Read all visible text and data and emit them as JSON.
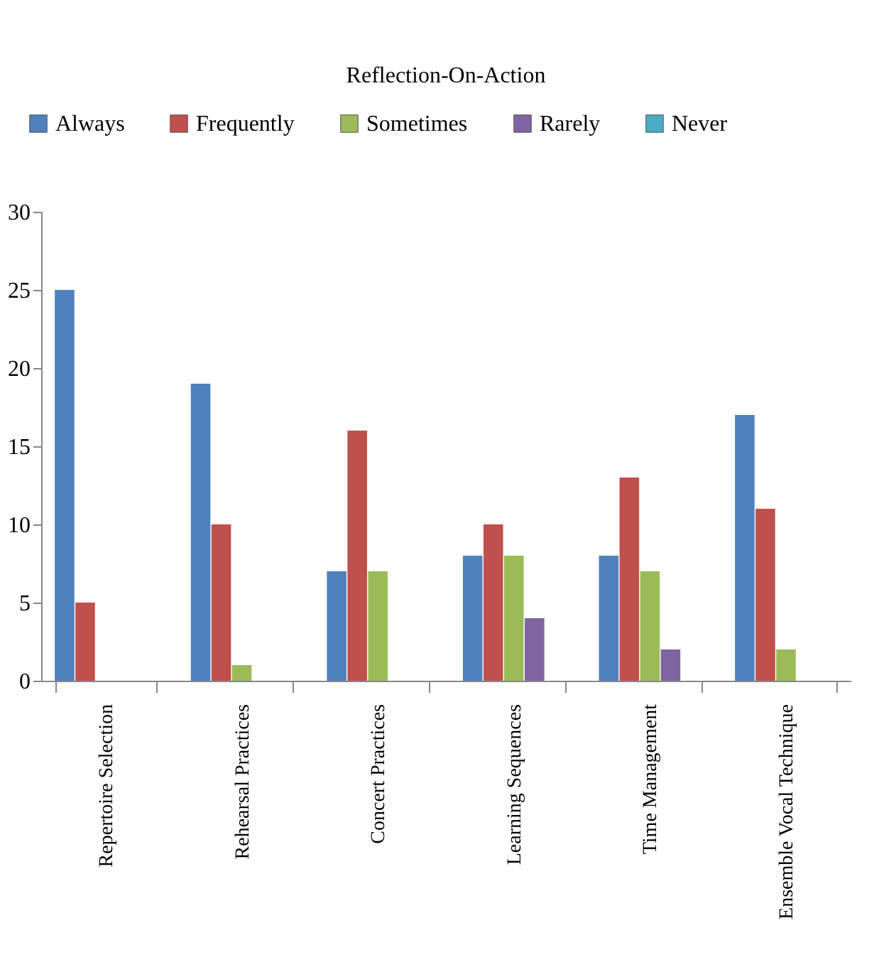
{
  "chart_data": {
    "type": "bar",
    "title": "Reflection-On-Action",
    "categories": [
      "Repertoire Selection",
      "Rehearsal Practices",
      "Concert Practices",
      "Learning Sequences",
      "Time Management",
      "Ensemble Vocal Technique"
    ],
    "series": [
      {
        "name": "Always",
        "color": "#4f81bd",
        "values": [
          25,
          19,
          7,
          8,
          8,
          17
        ]
      },
      {
        "name": "Frequently",
        "color": "#c0504d",
        "values": [
          5,
          10,
          16,
          10,
          13,
          11
        ]
      },
      {
        "name": "Sometimes",
        "color": "#9bbb59",
        "values": [
          0,
          1,
          7,
          8,
          7,
          2
        ]
      },
      {
        "name": "Rarely",
        "color": "#8064a2",
        "values": [
          0,
          0,
          0,
          4,
          2,
          0
        ]
      },
      {
        "name": "Never",
        "color": "#4bacc6",
        "values": [
          0,
          0,
          0,
          0,
          0,
          0
        ]
      }
    ],
    "ylim": [
      0,
      30
    ],
    "yticks": [
      0,
      5,
      10,
      15,
      20,
      25,
      30
    ],
    "grid": false,
    "legend": "top"
  }
}
